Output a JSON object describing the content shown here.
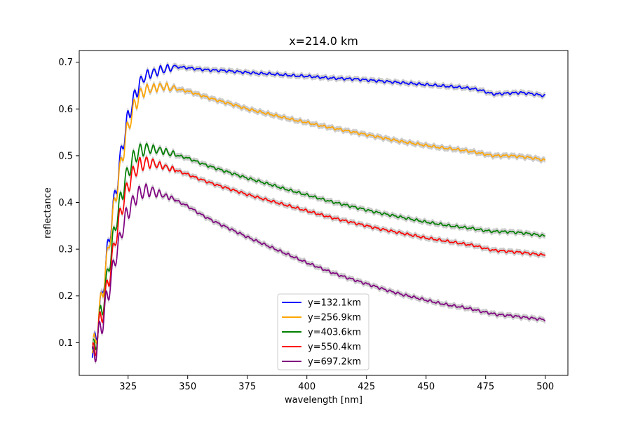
{
  "chart_data": {
    "type": "line",
    "title": "x=214.0 km",
    "xlabel": "wavelength [nm]",
    "ylabel": "reflectance",
    "xlim": [
      304.5,
      509.5
    ],
    "ylim": [
      0.03,
      0.725
    ],
    "xticks": [
      325,
      350,
      375,
      400,
      425,
      450,
      475,
      500
    ],
    "xtick_labels": [
      "325",
      "350",
      "375",
      "400",
      "425",
      "450",
      "475",
      "500"
    ],
    "yticks": [
      0.1,
      0.2,
      0.3,
      0.4,
      0.5,
      0.6,
      0.7
    ],
    "ytick_labels": [
      "0.1",
      "0.2",
      "0.3",
      "0.4",
      "0.5",
      "0.6",
      "0.7"
    ],
    "grid": false,
    "legend_position": "lower-center",
    "uncertainty_band_color": "#c8c8c8",
    "series": [
      {
        "name": "y=132.1km",
        "color": "#0000ff",
        "x": [
          310,
          312,
          314,
          316,
          318,
          320,
          322,
          324,
          326,
          328,
          330,
          332,
          334,
          336,
          338,
          340,
          343,
          346,
          350,
          355,
          360,
          365,
          370,
          375,
          380,
          385,
          390,
          395,
          400,
          405,
          410,
          415,
          420,
          425,
          430,
          435,
          440,
          445,
          450,
          455,
          460,
          465,
          470,
          473,
          476,
          478,
          480,
          485,
          490,
          495,
          500
        ],
        "y": [
          0.07,
          0.13,
          0.2,
          0.28,
          0.36,
          0.43,
          0.5,
          0.56,
          0.6,
          0.63,
          0.655,
          0.67,
          0.675,
          0.678,
          0.682,
          0.685,
          0.688,
          0.69,
          0.688,
          0.685,
          0.683,
          0.682,
          0.68,
          0.678,
          0.676,
          0.675,
          0.673,
          0.671,
          0.67,
          0.668,
          0.666,
          0.665,
          0.664,
          0.662,
          0.66,
          0.658,
          0.656,
          0.654,
          0.652,
          0.65,
          0.648,
          0.646,
          0.643,
          0.64,
          0.635,
          0.632,
          0.632,
          0.634,
          0.635,
          0.632,
          0.628
        ]
      },
      {
        "name": "y=256.9km",
        "color": "#ffa500",
        "x": [
          310,
          312,
          314,
          316,
          318,
          320,
          322,
          324,
          326,
          328,
          330,
          332,
          334,
          336,
          338,
          340,
          343,
          346,
          350,
          355,
          360,
          365,
          370,
          375,
          380,
          385,
          390,
          395,
          400,
          405,
          410,
          415,
          420,
          425,
          430,
          435,
          440,
          445,
          450,
          455,
          460,
          465,
          470,
          473,
          476,
          478,
          480,
          485,
          490,
          495,
          500
        ],
        "y": [
          0.07,
          0.13,
          0.2,
          0.27,
          0.35,
          0.42,
          0.48,
          0.54,
          0.58,
          0.61,
          0.63,
          0.64,
          0.643,
          0.645,
          0.647,
          0.648,
          0.645,
          0.642,
          0.638,
          0.63,
          0.622,
          0.615,
          0.608,
          0.6,
          0.594,
          0.588,
          0.582,
          0.576,
          0.571,
          0.565,
          0.56,
          0.555,
          0.55,
          0.545,
          0.54,
          0.535,
          0.53,
          0.526,
          0.522,
          0.518,
          0.515,
          0.512,
          0.508,
          0.505,
          0.502,
          0.5,
          0.5,
          0.5,
          0.498,
          0.495,
          0.49
        ]
      },
      {
        "name": "y=403.6km",
        "color": "#008000",
        "x": [
          310,
          312,
          314,
          316,
          318,
          320,
          322,
          324,
          326,
          328,
          330,
          332,
          334,
          336,
          338,
          340,
          343,
          346,
          350,
          355,
          360,
          365,
          370,
          375,
          380,
          385,
          390,
          395,
          400,
          405,
          410,
          415,
          420,
          425,
          430,
          435,
          440,
          445,
          450,
          455,
          460,
          465,
          470,
          473,
          476,
          478,
          480,
          485,
          490,
          495,
          500
        ],
        "y": [
          0.065,
          0.12,
          0.17,
          0.23,
          0.3,
          0.36,
          0.41,
          0.45,
          0.48,
          0.5,
          0.51,
          0.515,
          0.515,
          0.513,
          0.512,
          0.51,
          0.505,
          0.5,
          0.495,
          0.485,
          0.476,
          0.468,
          0.46,
          0.452,
          0.445,
          0.438,
          0.43,
          0.423,
          0.416,
          0.409,
          0.402,
          0.396,
          0.39,
          0.384,
          0.378,
          0.373,
          0.368,
          0.363,
          0.358,
          0.354,
          0.35,
          0.347,
          0.344,
          0.341,
          0.339,
          0.338,
          0.338,
          0.337,
          0.335,
          0.332,
          0.328
        ]
      },
      {
        "name": "y=550.4km",
        "color": "#ff0000",
        "x": [
          310,
          312,
          314,
          316,
          318,
          320,
          322,
          324,
          326,
          328,
          330,
          332,
          334,
          336,
          338,
          340,
          343,
          346,
          350,
          355,
          360,
          365,
          370,
          375,
          380,
          385,
          390,
          395,
          400,
          405,
          410,
          415,
          420,
          425,
          430,
          435,
          440,
          445,
          450,
          455,
          460,
          465,
          470,
          473,
          476,
          478,
          480,
          485,
          490,
          495,
          500
        ],
        "y": [
          0.065,
          0.11,
          0.16,
          0.21,
          0.27,
          0.33,
          0.38,
          0.42,
          0.45,
          0.47,
          0.48,
          0.485,
          0.485,
          0.483,
          0.48,
          0.477,
          0.472,
          0.467,
          0.46,
          0.45,
          0.441,
          0.433,
          0.425,
          0.417,
          0.41,
          0.403,
          0.396,
          0.389,
          0.382,
          0.375,
          0.368,
          0.362,
          0.356,
          0.35,
          0.344,
          0.339,
          0.334,
          0.329,
          0.324,
          0.32,
          0.316,
          0.312,
          0.308,
          0.304,
          0.3,
          0.298,
          0.297,
          0.295,
          0.293,
          0.29,
          0.287
        ]
      },
      {
        "name": "y=697.2km",
        "color": "#800080",
        "x": [
          310,
          312,
          314,
          316,
          318,
          320,
          322,
          324,
          326,
          328,
          330,
          332,
          334,
          336,
          338,
          340,
          343,
          346,
          350,
          355,
          360,
          365,
          370,
          375,
          380,
          385,
          390,
          395,
          400,
          405,
          410,
          415,
          420,
          425,
          430,
          435,
          440,
          445,
          450,
          455,
          460,
          465,
          470,
          473,
          476,
          478,
          480,
          485,
          490,
          495,
          500
        ],
        "y": [
          0.06,
          0.1,
          0.14,
          0.19,
          0.24,
          0.29,
          0.33,
          0.37,
          0.39,
          0.41,
          0.42,
          0.425,
          0.425,
          0.422,
          0.419,
          0.415,
          0.41,
          0.402,
          0.392,
          0.376,
          0.362,
          0.35,
          0.338,
          0.326,
          0.315,
          0.304,
          0.293,
          0.282,
          0.271,
          0.261,
          0.251,
          0.242,
          0.234,
          0.226,
          0.218,
          0.21,
          0.203,
          0.197,
          0.191,
          0.185,
          0.18,
          0.176,
          0.171,
          0.167,
          0.164,
          0.162,
          0.16,
          0.158,
          0.155,
          0.152,
          0.149
        ]
      }
    ]
  }
}
